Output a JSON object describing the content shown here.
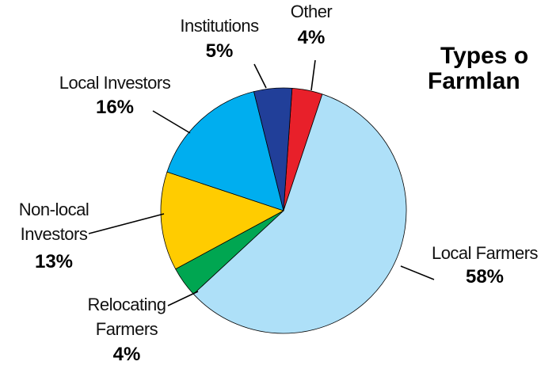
{
  "chart_data": {
    "type": "pie",
    "title_lines": [
      "Types o",
      "Farmlan"
    ],
    "categories": [
      "Other",
      "Local Farmers",
      "Relocating Farmers",
      "Non-local Investors",
      "Local Investors",
      "Institutions"
    ],
    "values": [
      4,
      58,
      4,
      13,
      16,
      5
    ],
    "value_labels": [
      "4%",
      "58%",
      "4%",
      "13%",
      "16%",
      "5%"
    ],
    "colors": [
      "#e8202a",
      "#aee0f8",
      "#00a651",
      "#ffcc00",
      "#00aeef",
      "#213f99"
    ]
  }
}
